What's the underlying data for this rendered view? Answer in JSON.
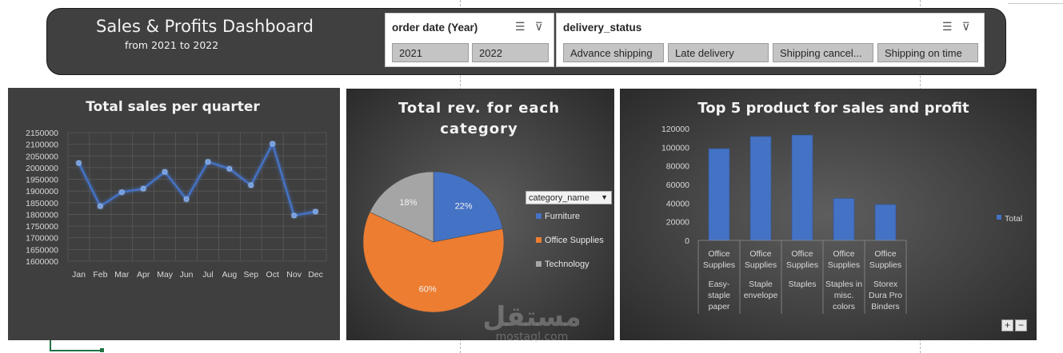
{
  "header": {
    "title": "Sales & Profits Dashboard",
    "subtitle": "from 2021 to 2022"
  },
  "slicer_year": {
    "title": "order date (Year)",
    "items": [
      "2021",
      "2022"
    ]
  },
  "slicer_delivery": {
    "title": "delivery_status",
    "items": [
      "Advance shipping",
      "Late delivery",
      "Shipping cancel...",
      "Shipping on time"
    ]
  },
  "icons": {
    "multiselect": "multi-select-icon",
    "clear_filter": "clear-filter-icon"
  },
  "colors": {
    "header_bg": "#404040",
    "panel_bg": "#3f3f3f",
    "blue": "#4472c4",
    "orange": "#ed7d31",
    "gray": "#a5a5a5"
  },
  "legend_dropdown": {
    "label": "category_name"
  },
  "zoom": {
    "plus": "+",
    "minus": "−"
  },
  "watermark": {
    "logo_text": "مستقل",
    "site": "mostaql.com"
  },
  "chart_data": [
    {
      "type": "line",
      "title": "Total sales per quarter",
      "categories": [
        "Jan",
        "Feb",
        "Mar",
        "Apr",
        "May",
        "Jun",
        "Jul",
        "Aug",
        "Sep",
        "Oct",
        "Nov",
        "Dec"
      ],
      "values": [
        2020000,
        1835000,
        1895000,
        1910000,
        1982000,
        1865000,
        2025000,
        1995000,
        1925000,
        2102000,
        1795000,
        1812000
      ],
      "ylim": [
        1600000,
        2150000
      ],
      "yticks": [
        "2150000",
        "2100000",
        "2050000",
        "2000000",
        "1950000",
        "1900000",
        "1850000",
        "1800000",
        "1750000",
        "1700000",
        "1650000",
        "1600000"
      ],
      "grid": true
    },
    {
      "type": "pie",
      "title_lines": [
        "Total rev. for each",
        "category"
      ],
      "legend_title": "category_name",
      "labels": [
        "Furniture",
        "Office Supplies",
        "Technology"
      ],
      "values": [
        22,
        60,
        18
      ],
      "data_labels": [
        "22%",
        "60%",
        "18%"
      ],
      "legend_placement": "right"
    },
    {
      "type": "bar",
      "title": "Top 5 product for sales and profit",
      "groups": [
        {
          "group": [
            "Office",
            "Supplies"
          ],
          "product": [
            "Easy-",
            "staple",
            "paper"
          ]
        },
        {
          "group": [
            "Office",
            "Supplies"
          ],
          "product": [
            "Staple",
            "envelope"
          ]
        },
        {
          "group": [
            "Office",
            "Supplies"
          ],
          "product": [
            "Staples"
          ]
        },
        {
          "group": [
            "Office",
            "Supplies"
          ],
          "product": [
            "Staples in",
            "misc.",
            "colors"
          ]
        },
        {
          "group": [
            "Office",
            "Supplies"
          ],
          "product": [
            "Storex",
            "Dura Pro",
            "Binders"
          ]
        }
      ],
      "series": [
        {
          "name": "Total",
          "values": [
            98500,
            111500,
            113000,
            45000,
            38500
          ]
        }
      ],
      "ylim": [
        0,
        120000
      ],
      "yticks": [
        "120000",
        "100000",
        "80000",
        "60000",
        "40000",
        "20000",
        "0"
      ],
      "legend_placement": "right"
    }
  ]
}
